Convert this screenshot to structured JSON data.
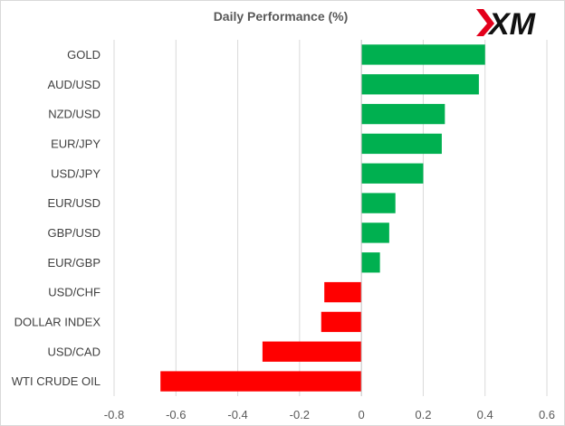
{
  "chart_data": {
    "type": "bar",
    "orientation": "horizontal",
    "title": "Daily Performance (%)",
    "xlabel": "",
    "ylabel": "",
    "categories": [
      "GOLD",
      "AUD/USD",
      "NZD/USD",
      "EUR/JPY",
      "USD/JPY",
      "EUR/USD",
      "GBP/USD",
      "EUR/GBP",
      "USD/CHF",
      "DOLLAR INDEX",
      "USD/CAD",
      "WTI CRUDE OIL"
    ],
    "values": [
      0.4,
      0.38,
      0.27,
      0.26,
      0.2,
      0.11,
      0.09,
      0.06,
      -0.12,
      -0.13,
      -0.32,
      -0.65
    ],
    "xlim": [
      -0.8,
      0.6
    ],
    "xticks": [
      -0.8,
      -0.6,
      -0.4,
      -0.2,
      0,
      0.2,
      0.4,
      0.6
    ],
    "xtick_labels": [
      "-0.8",
      "-0.6",
      "-0.4",
      "-0.2",
      "0",
      "0.2",
      "0.4",
      "0.6"
    ],
    "grid": true,
    "colors": {
      "positive": "#00b050",
      "negative": "#ff0000",
      "grid": "#d9d9d9",
      "axis": "#bfbfbf"
    }
  },
  "logo": {
    "text": "XM"
  }
}
